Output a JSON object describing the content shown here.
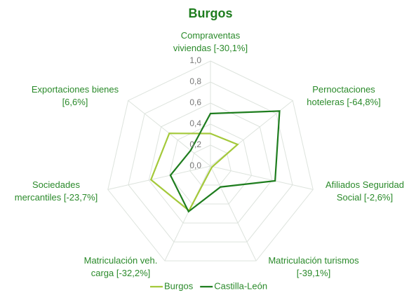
{
  "chart_data": {
    "type": "radar",
    "title": "Burgos",
    "categories": [
      "Compraventas\nviviendas [-30,1%]",
      "Pernoctaciones\nhoteleras [-64,8%]",
      "Afiliados Seguridad\nSocial [-2,6%]",
      "Matriculación turismos\n[-39,1%]",
      "Matriculación veh.\ncarga [-32,2%]",
      "Sociedades\nmercantiles [-23,7%]",
      "Exportaciones bienes\n[6,6%]"
    ],
    "series": [
      {
        "name": "Burgos",
        "color": "#a4c93a",
        "values": [
          0.31,
          0.33,
          0.02,
          0.02,
          0.47,
          0.58,
          0.5
        ]
      },
      {
        "name": "Castilla-León",
        "color": "#1e7d1e",
        "values": [
          0.5,
          0.84,
          0.63,
          0.22,
          0.48,
          0.39,
          0.24
        ]
      }
    ],
    "ylim": [
      0,
      1
    ],
    "yticks": [
      {
        "value": 0,
        "label": "0,0"
      },
      {
        "value": 0.2,
        "label": "0,2"
      },
      {
        "value": 0.4,
        "label": "0,4"
      },
      {
        "value": 0.6,
        "label": "0,6"
      },
      {
        "value": 0.8,
        "label": "0,8"
      },
      {
        "value": 1,
        "label": "1,0"
      }
    ],
    "grid": true,
    "legend": "bottom"
  }
}
